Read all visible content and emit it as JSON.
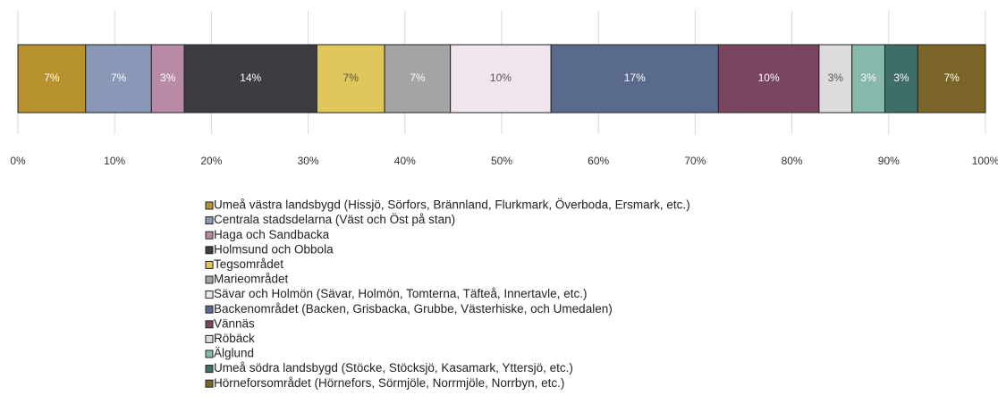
{
  "chart_data": {
    "type": "bar",
    "orientation": "horizontal",
    "stacked": true,
    "xlim": [
      0,
      100
    ],
    "xticks": [
      {
        "value": 0,
        "label": "0%"
      },
      {
        "value": 10,
        "label": "10%"
      },
      {
        "value": 20,
        "label": "20%"
      },
      {
        "value": 30,
        "label": "30%"
      },
      {
        "value": 40,
        "label": "40%"
      },
      {
        "value": 50,
        "label": "50%"
      },
      {
        "value": 60,
        "label": "60%"
      },
      {
        "value": 70,
        "label": "70%"
      },
      {
        "value": 80,
        "label": "80%"
      },
      {
        "value": 90,
        "label": "90%"
      },
      {
        "value": 100,
        "label": "100%"
      }
    ],
    "grid": true,
    "legend": "bottom",
    "series": [
      {
        "name": "Umeå västra landsbygd (Hissjö, Sörfors, Brännland, Flurkmark, Överboda, Ersmark, etc.)",
        "color": "#b8922e",
        "values": [
          7.0
        ],
        "value_labels": [
          "7%"
        ]
      },
      {
        "name": "Centrala stadsdelarna (Väst och Öst på stan)",
        "color": "#8a98b8",
        "values": [
          6.8
        ],
        "value_labels": [
          "7%"
        ]
      },
      {
        "name": "Haga och Sandbacka",
        "color": "#b98aa6",
        "values": [
          3.4
        ],
        "value_labels": [
          "3%"
        ]
      },
      {
        "name": "Holmsund och Obbola",
        "color": "#3d3c40",
        "values": [
          13.7
        ],
        "value_labels": [
          "14%"
        ]
      },
      {
        "name": "Tegsområdet",
        "color": "#dfc75c",
        "values": [
          7.0
        ],
        "value_labels": [
          "7%"
        ]
      },
      {
        "name": "Marieområdet",
        "color": "#a4a4a6",
        "values": [
          6.8
        ],
        "value_labels": [
          "7%"
        ]
      },
      {
        "name": "Sävar och Holmön (Sävar, Holmön, Tomterna, Täfteå, Innertavle, etc.)",
        "color": "#f0e5ec",
        "values": [
          10.4
        ],
        "value_labels": [
          "10%"
        ]
      },
      {
        "name": "Backenområdet (Backen, Grisbacka, Grubbe, Västerhiske, och Umedalen)",
        "color": "#5a6a8c",
        "values": [
          17.3
        ],
        "value_labels": [
          "17%"
        ]
      },
      {
        "name": "Vännäs",
        "color": "#7a4560",
        "values": [
          10.4
        ],
        "value_labels": [
          "10%"
        ]
      },
      {
        "name": "Röbäck",
        "color": "#dcdcdc",
        "values": [
          3.4
        ],
        "value_labels": [
          "3%"
        ]
      },
      {
        "name": "Älglund",
        "color": "#86b8ac",
        "values": [
          3.4
        ],
        "value_labels": [
          "3%"
        ]
      },
      {
        "name": "Umeå södra landsbygd (Stöcke, Stöcksjö, Kasamark, Yttersjö, etc.)",
        "color": "#3f6e68",
        "values": [
          3.4
        ],
        "value_labels": [
          "3%"
        ]
      },
      {
        "name": "Hörneforsområdet (Hörnefors, Sörmjöle, Norrmjöle, Norrbyn, etc.)",
        "color": "#7a6428",
        "values": [
          7.0
        ],
        "value_labels": [
          "7%"
        ]
      }
    ]
  }
}
